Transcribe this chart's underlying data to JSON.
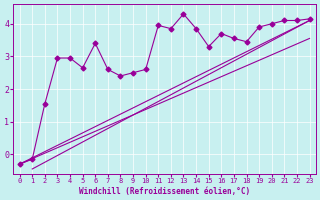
{
  "xlabel": "Windchill (Refroidissement éolien,°C)",
  "bg_color": "#c8f0f0",
  "line_color": "#990099",
  "xlim": [
    -0.5,
    23.5
  ],
  "ylim": [
    -0.6,
    4.6
  ],
  "xticks": [
    0,
    1,
    2,
    3,
    4,
    5,
    6,
    7,
    8,
    9,
    10,
    11,
    12,
    13,
    14,
    15,
    16,
    17,
    18,
    19,
    20,
    21,
    22,
    23
  ],
  "yticks": [
    0,
    1,
    2,
    3,
    4
  ],
  "series_jagged_x": [
    0,
    1,
    2,
    3,
    4,
    5,
    6,
    7,
    8,
    9,
    10,
    11,
    12,
    13,
    14,
    15,
    16,
    17,
    18,
    19,
    20,
    21,
    22,
    23
  ],
  "series_jagged_y": [
    -0.3,
    -0.15,
    1.55,
    2.95,
    2.95,
    2.65,
    3.4,
    2.6,
    2.4,
    2.5,
    2.6,
    3.95,
    3.85,
    4.3,
    3.85,
    3.3,
    3.7,
    3.55,
    3.45,
    3.9,
    4.0,
    4.1,
    4.1,
    4.15
  ],
  "series_line1_x": [
    0,
    23
  ],
  "series_line1_y": [
    -0.3,
    4.1
  ],
  "series_line2_x": [
    0,
    23
  ],
  "series_line2_y": [
    -0.3,
    3.55
  ],
  "series_line3_x": [
    1,
    23
  ],
  "series_line3_y": [
    -0.45,
    4.1
  ],
  "marker": "D",
  "markersize": 2.5
}
